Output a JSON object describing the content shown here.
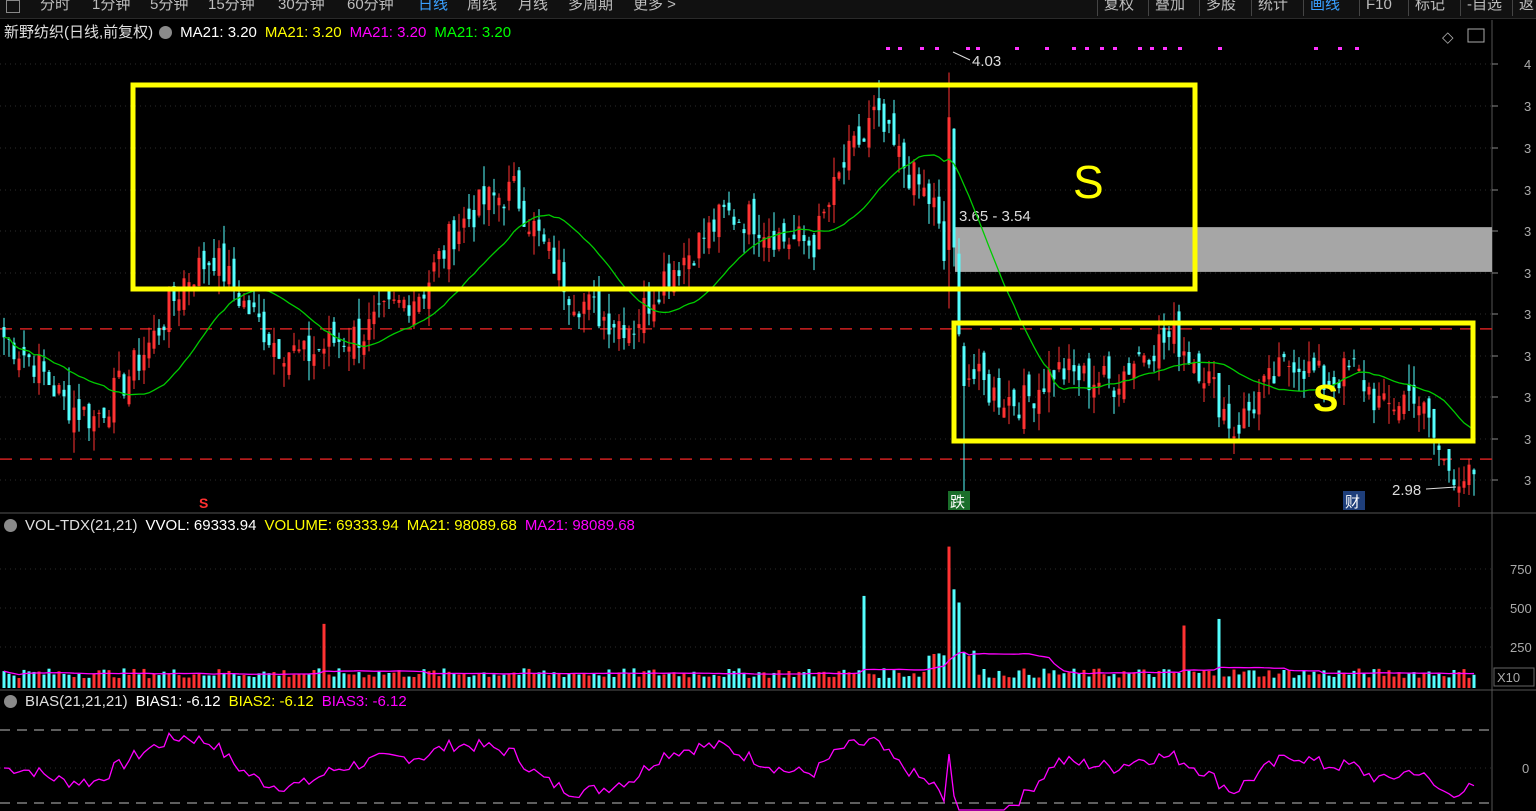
{
  "toolbar": {
    "periods": [
      "分时",
      "1分钟",
      "5分钟",
      "15分钟",
      "30分钟",
      "60分钟",
      "日线",
      "周线",
      "月线",
      "多周期",
      "更多 >"
    ],
    "active_period": "日线",
    "right_buttons": [
      "复权",
      "叠加",
      "多股",
      "统计",
      "画线",
      "F10",
      "标记",
      "-自选",
      "返"
    ],
    "active_right": "画线"
  },
  "main_legend": {
    "title": "新野纺织(日线,前复权)",
    "items": [
      {
        "label": "MA21: 3.20",
        "color": "#ffffff"
      },
      {
        "label": "MA21: 3.20",
        "color": "#ffff00"
      },
      {
        "label": "MA21: 3.20",
        "color": "#ff00ff"
      },
      {
        "label": "MA21: 3.20",
        "color": "#00ff00"
      }
    ]
  },
  "vol_legend": {
    "title": "VOL-TDX(21,21)",
    "items": [
      {
        "label": "VVOL: 69333.94",
        "color": "#ffffff"
      },
      {
        "label": "VOLUME: 69333.94",
        "color": "#ffff00"
      },
      {
        "label": "MA21: 98089.68",
        "color": "#ffff00"
      },
      {
        "label": "MA21: 98089.68",
        "color": "#ff00ff"
      }
    ]
  },
  "bias_legend": {
    "title": "BIAS(21,21,21)",
    "items": [
      {
        "label": "BIAS1: -6.12",
        "color": "#ffffff"
      },
      {
        "label": "BIAS2: -6.12",
        "color": "#ffff00"
      },
      {
        "label": "BIAS3: -6.12",
        "color": "#ff00ff"
      }
    ]
  },
  "annotations": {
    "high_label": "4.03",
    "low_label": "2.98",
    "gap_label": "3.65 - 3.54",
    "big_s": "S",
    "small_s": "S",
    "marker_s": "S",
    "marker_die": "跌",
    "marker_cai": "财",
    "vol_unit": "X10"
  },
  "axis": {
    "price_ticks": [
      "4",
      "3",
      "3",
      "3",
      "3",
      "3",
      "3",
      "3",
      "3",
      "3",
      "3"
    ],
    "vol_ticks": [
      "750",
      "500",
      "250"
    ],
    "bias_ticks": [
      "0"
    ]
  },
  "colors": {
    "up": "#ff3232",
    "down": "#54ffff",
    "ma_price": "#00cc00",
    "ma_vol": "#ff00ff",
    "bias": "#ff00ff",
    "box": "#ffff00",
    "support_line": "#d02020",
    "gap_zone": "#a6a6a6"
  },
  "chart_data": [
    {
      "type": "candlestick",
      "title": "新野纺织(日线,前复权)",
      "price_ylim": [
        2.95,
        4.1
      ],
      "high": 4.03,
      "low": 2.98,
      "resistance_zone": [
        3.54,
        3.65
      ],
      "support_levels": [
        3.4,
        3.08
      ],
      "ma21_last": 3.2,
      "overview_closes": [
        3.38,
        3.32,
        3.22,
        3.18,
        3.27,
        3.38,
        3.52,
        3.58,
        3.46,
        3.37,
        3.33,
        3.37,
        3.39,
        3.45,
        3.5,
        3.64,
        3.71,
        3.74,
        3.6,
        3.48,
        3.43,
        3.41,
        3.53,
        3.6,
        3.68,
        3.67,
        3.62,
        3.61,
        3.8,
        3.92,
        3.8,
        3.7,
        3.3,
        3.24,
        3.22,
        3.3,
        3.28,
        3.27,
        3.35,
        3.38,
        3.3,
        3.15,
        3.25,
        3.33,
        3.27,
        3.3,
        3.2,
        3.25,
        3.07,
        3.02
      ]
    },
    {
      "type": "bar",
      "title": "VOL-TDX(21,21)",
      "unit_label": "X10",
      "vvol": 69333.94,
      "ma21": 98089.68,
      "ylim": [
        0,
        900
      ]
    },
    {
      "type": "line",
      "title": "BIAS(21,21,21)",
      "bias1": -6.12
    }
  ]
}
